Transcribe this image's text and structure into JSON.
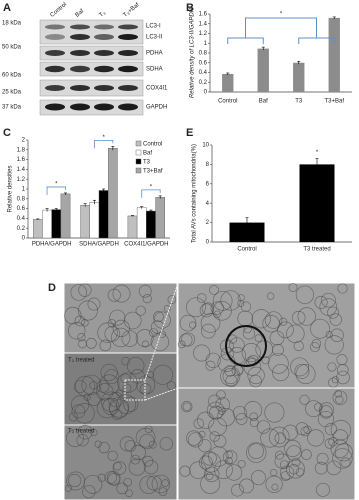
{
  "blot": {
    "panel": "A",
    "lanes": [
      "Control",
      "Baf",
      "T₃",
      "T₃+Baf"
    ],
    "proteins": [
      "LC3-I",
      "LC3-II",
      "PDHA",
      "SDHA",
      "COX4I1",
      "GAPDH"
    ],
    "markers": [
      "18 kDa",
      "50 kDa",
      "60 kDa",
      "25 kDa",
      "37 kDa"
    ]
  },
  "micrographs": {
    "panel": "D",
    "labels": [
      "T₃ treated",
      "T₃ treated"
    ]
  },
  "chart_data": [
    {
      "type": "bar",
      "panel": "B",
      "y_label": "Relative density of LC3-II/GAPDH",
      "categories": [
        "Control",
        "Baf",
        "T3",
        "T3+Baf"
      ],
      "values": [
        0.37,
        0.89,
        0.6,
        1.52
      ],
      "errors": [
        0.02,
        0.03,
        0.03,
        0.02
      ],
      "color": "#8c8c8c",
      "ylim": [
        0,
        1.6
      ],
      "yticks": [
        0,
        0.2,
        0.4,
        0.6,
        0.8,
        1,
        1.2,
        1.4,
        1.6
      ],
      "annotations": [
        "*"
      ]
    },
    {
      "type": "grouped-bar",
      "panel": "C",
      "y_label": "Relative densities",
      "categories": [
        "PDHA/GAPDH",
        "SDHA/GAPDH",
        "COX4I1/GAPDH"
      ],
      "series": [
        {
          "name": "Control",
          "color": "#bfbfbf",
          "values": [
            0.38,
            0.67,
            0.45
          ],
          "errors": [
            0.01,
            0.03,
            0.01
          ]
        },
        {
          "name": "Baf",
          "color": "#ffffff",
          "values": [
            0.57,
            0.73,
            0.62
          ],
          "errors": [
            0.03,
            0.04,
            0.02
          ]
        },
        {
          "name": "T3",
          "color": "#000000",
          "values": [
            0.58,
            0.97,
            0.55
          ],
          "errors": [
            0.02,
            0.03,
            0.02
          ]
        },
        {
          "name": "T3+Baf",
          "color": "#a6a6a6",
          "values": [
            0.9,
            1.83,
            0.83
          ],
          "errors": [
            0.02,
            0.04,
            0.03
          ]
        }
      ],
      "ylim": [
        0,
        2
      ],
      "yticks": [
        0,
        0.2,
        0.4,
        0.6,
        0.8,
        1,
        1.2,
        1.4,
        1.6,
        1.8,
        2
      ],
      "annotations": [
        "*",
        "*",
        "*"
      ]
    },
    {
      "type": "bar",
      "panel": "E",
      "y_label": "Total AVs containing mitochondria(%)",
      "categories": [
        "Control",
        "T3 treated"
      ],
      "values": [
        2,
        8
      ],
      "errors": [
        0.5,
        0.6
      ],
      "color": "#000000",
      "ylim": [
        0,
        10
      ],
      "yticks": [
        0,
        2,
        4,
        6,
        8,
        10
      ],
      "annotations": [
        "*"
      ]
    }
  ]
}
